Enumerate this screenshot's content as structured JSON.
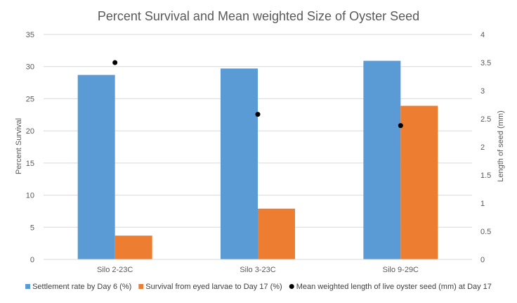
{
  "chart_data": {
    "type": "bar",
    "title": "Percent Survival and Mean weighted Size of Oyster Seed",
    "categories": [
      "Silo 2-23C",
      "Silo 3-23C",
      "Silo 9-29C"
    ],
    "series": [
      {
        "name": "Settlement rate by Day 6 (%)",
        "kind": "bar",
        "axis": "left",
        "color": "#5b9bd5",
        "values": [
          28.7,
          29.7,
          30.9
        ]
      },
      {
        "name": "Survival from eyed larvae to Day 17 (%)",
        "kind": "bar",
        "axis": "left",
        "color": "#ed7d31",
        "values": [
          3.7,
          7.9,
          23.9
        ]
      },
      {
        "name": "Mean weighted length of live oyster seed (mm) at Day 17",
        "kind": "marker",
        "axis": "right",
        "color": "#000000",
        "values": [
          3.5,
          2.58,
          2.38
        ]
      }
    ],
    "ylabel": "Percent Survival",
    "ylabel_right": "Length of seed (mm)",
    "ylim": [
      0,
      35
    ],
    "ylim_right": [
      0,
      4
    ],
    "yticks": [
      "0",
      "5",
      "10",
      "15",
      "20",
      "25",
      "30",
      "35"
    ],
    "yticks_right": [
      "0",
      "0.5",
      "1",
      "1.5",
      "2",
      "2.5",
      "3",
      "3.5",
      "4"
    ],
    "grid": true,
    "legend_position": "bottom"
  }
}
